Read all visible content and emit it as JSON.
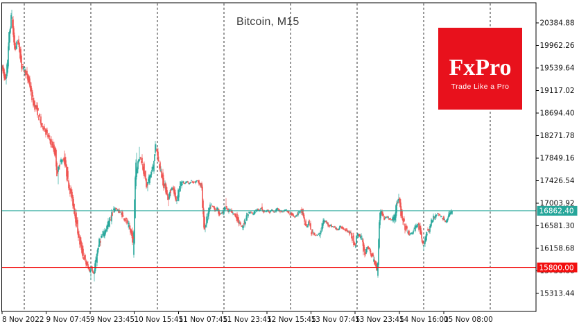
{
  "title": "Bitcoin, M15",
  "logo": {
    "brand": "FxPro",
    "tagline": "Trade Like a Pro",
    "bg_color": "#e8111c",
    "text_color": "#ffffff"
  },
  "chart_data": {
    "type": "candlestick",
    "symbol": "Bitcoin",
    "timeframe": "M15",
    "title": "Bitcoin, M15",
    "up_color": "#26a69a",
    "down_color": "#ef5350",
    "grid": "vertical dashed day separators, no horizontal grid",
    "legend_position": "none",
    "background": "#ffffff",
    "axis_color": "#000000",
    "label_color": "#111111",
    "ylim": [
      15090,
      20760
    ],
    "current_price": 16862.4,
    "current_price_label": "16862.40",
    "current_price_color": "#26a69a",
    "alert_line_price": 15800.0,
    "alert_line_label": "15800.00",
    "alert_line_color": "#f20f0f",
    "y_axis_ticks": [
      "20384.88",
      "19962.26",
      "19539.64",
      "19117.02",
      "18694.40",
      "18271.78",
      "17849.16",
      "17426.54",
      "17003.92",
      "16581.30",
      "16158.68",
      "15736.06",
      "15313.44"
    ],
    "x_axis_ticks": [
      "8 Nov 2022",
      "9 Nov 07:45",
      "9 Nov 23:45",
      "10 Nov 15:45",
      "11 Nov 07:45",
      "11 Nov 23:45",
      "12 Nov 15:45",
      "13 Nov 07:45",
      "13 Nov 23:45",
      "14 Nov 16:00",
      "15 Nov 08:00"
    ],
    "price_path_anchors": [
      [
        3,
        19560
      ],
      [
        6,
        19430
      ],
      [
        9,
        19310
      ],
      [
        11,
        19560
      ],
      [
        13,
        20000
      ],
      [
        15,
        20250
      ],
      [
        17,
        20480
      ],
      [
        19,
        20280
      ],
      [
        21,
        20000
      ],
      [
        23,
        19900
      ],
      [
        25,
        20050
      ],
      [
        27,
        19980
      ],
      [
        29,
        19870
      ],
      [
        31,
        19640
      ],
      [
        34,
        19520
      ],
      [
        37,
        19480
      ],
      [
        40,
        19350
      ],
      [
        43,
        19260
      ],
      [
        46,
        19050
      ],
      [
        49,
        18880
      ],
      [
        52,
        18800
      ],
      [
        55,
        18720
      ],
      [
        58,
        18560
      ],
      [
        61,
        18450
      ],
      [
        64,
        18420
      ],
      [
        67,
        18330
      ],
      [
        70,
        18250
      ],
      [
        73,
        18180
      ],
      [
        76,
        18080
      ],
      [
        79,
        17990
      ],
      [
        81,
        17850
      ],
      [
        83,
        17550
      ],
      [
        85,
        17680
      ],
      [
        88,
        17780
      ],
      [
        91,
        17830
      ],
      [
        94,
        17780
      ],
      [
        97,
        17550
      ],
      [
        100,
        17350
      ],
      [
        103,
        17180
      ],
      [
        106,
        17000
      ],
      [
        109,
        16780
      ],
      [
        112,
        16550
      ],
      [
        115,
        16320
      ],
      [
        118,
        16150
      ],
      [
        121,
        16020
      ],
      [
        124,
        15900
      ],
      [
        127,
        15820
      ],
      [
        130,
        15730
      ],
      [
        132,
        15840
      ],
      [
        134,
        15720
      ],
      [
        136,
        15690
      ],
      [
        138,
        15830
      ],
      [
        140,
        16020
      ],
      [
        143,
        16220
      ],
      [
        146,
        16340
      ],
      [
        149,
        16410
      ],
      [
        152,
        16490
      ],
      [
        155,
        16560
      ],
      [
        158,
        16660
      ],
      [
        161,
        16760
      ],
      [
        164,
        16860
      ],
      [
        167,
        16910
      ],
      [
        170,
        16870
      ],
      [
        173,
        16840
      ],
      [
        176,
        16800
      ],
      [
        179,
        16740
      ],
      [
        182,
        16690
      ],
      [
        185,
        16600
      ],
      [
        188,
        16500
      ],
      [
        191,
        16380
      ],
      [
        193,
        16270
      ],
      [
        196,
        17560
      ],
      [
        199,
        17720
      ],
      [
        202,
        17870
      ],
      [
        205,
        17790
      ],
      [
        208,
        17620
      ],
      [
        210,
        17480
      ],
      [
        212,
        17330
      ],
      [
        215,
        17450
      ],
      [
        218,
        17560
      ],
      [
        221,
        17650
      ],
      [
        224,
        17980
      ],
      [
        226,
        18010
      ],
      [
        228,
        17880
      ],
      [
        231,
        17690
      ],
      [
        234,
        17520
      ],
      [
        237,
        17350
      ],
      [
        240,
        17270
      ],
      [
        243,
        17090
      ],
      [
        246,
        17230
      ],
      [
        249,
        17290
      ],
      [
        252,
        17200
      ],
      [
        255,
        17060
      ],
      [
        258,
        17230
      ],
      [
        261,
        17350
      ],
      [
        264,
        17400
      ],
      [
        267,
        17370
      ],
      [
        270,
        17410
      ],
      [
        273,
        17370
      ],
      [
        276,
        17420
      ],
      [
        279,
        17390
      ],
      [
        282,
        17400
      ],
      [
        285,
        17430
      ],
      [
        288,
        17380
      ],
      [
        291,
        17330
      ],
      [
        293,
        16900
      ],
      [
        295,
        16600
      ],
      [
        297,
        16580
      ],
      [
        299,
        16700
      ],
      [
        302,
        16850
      ],
      [
        305,
        16950
      ],
      [
        308,
        16930
      ],
      [
        311,
        16870
      ],
      [
        314,
        16900
      ],
      [
        317,
        16790
      ],
      [
        320,
        16830
      ],
      [
        323,
        16850
      ],
      [
        326,
        16950
      ],
      [
        329,
        16860
      ],
      [
        332,
        16880
      ],
      [
        335,
        16820
      ],
      [
        338,
        16800
      ],
      [
        341,
        16760
      ],
      [
        344,
        16680
      ],
      [
        347,
        16590
      ],
      [
        350,
        16560
      ],
      [
        353,
        16650
      ],
      [
        356,
        16760
      ],
      [
        359,
        16820
      ],
      [
        362,
        16840
      ],
      [
        365,
        16800
      ],
      [
        368,
        16850
      ],
      [
        371,
        16880
      ],
      [
        374,
        16870
      ],
      [
        377,
        16920
      ],
      [
        380,
        16860
      ],
      [
        383,
        16840
      ],
      [
        386,
        16870
      ],
      [
        389,
        16820
      ],
      [
        392,
        16880
      ],
      [
        395,
        16840
      ],
      [
        398,
        16860
      ],
      [
        401,
        16900
      ],
      [
        404,
        16860
      ],
      [
        407,
        16840
      ],
      [
        410,
        16850
      ],
      [
        413,
        16880
      ],
      [
        416,
        16820
      ],
      [
        419,
        16810
      ],
      [
        422,
        16790
      ],
      [
        425,
        16750
      ],
      [
        428,
        16780
      ],
      [
        431,
        16830
      ],
      [
        434,
        16860
      ],
      [
        436,
        16840
      ],
      [
        438,
        16720
      ],
      [
        440,
        16640
      ],
      [
        443,
        16560
      ],
      [
        446,
        16650
      ],
      [
        449,
        16480
      ],
      [
        452,
        16450
      ],
      [
        455,
        16420
      ],
      [
        458,
        16400
      ],
      [
        461,
        16420
      ],
      [
        464,
        16520
      ],
      [
        467,
        16660
      ],
      [
        470,
        16660
      ],
      [
        473,
        16620
      ],
      [
        476,
        16590
      ],
      [
        479,
        16570
      ],
      [
        482,
        16560
      ],
      [
        485,
        16530
      ],
      [
        488,
        16510
      ],
      [
        491,
        16560
      ],
      [
        494,
        16540
      ],
      [
        497,
        16520
      ],
      [
        500,
        16500
      ],
      [
        503,
        16470
      ],
      [
        506,
        16430
      ],
      [
        509,
        16350
      ],
      [
        511,
        16270
      ],
      [
        513,
        16220
      ],
      [
        515,
        16360
      ],
      [
        517,
        16420
      ],
      [
        519,
        16390
      ],
      [
        522,
        16330
      ],
      [
        525,
        16160
      ],
      [
        527,
        16060
      ],
      [
        530,
        16190
      ],
      [
        533,
        16120
      ],
      [
        536,
        16060
      ],
      [
        539,
        15950
      ],
      [
        541,
        15880
      ],
      [
        543,
        15810
      ],
      [
        545,
        15830
      ],
      [
        546,
        16100
      ],
      [
        548,
        16700
      ],
      [
        550,
        16840
      ],
      [
        552,
        16800
      ],
      [
        555,
        16720
      ],
      [
        558,
        16750
      ],
      [
        561,
        16730
      ],
      [
        564,
        16690
      ],
      [
        567,
        16710
      ],
      [
        570,
        16790
      ],
      [
        573,
        17000
      ],
      [
        575,
        17070
      ],
      [
        577,
        16980
      ],
      [
        579,
        16800
      ],
      [
        581,
        16690
      ],
      [
        583,
        16620
      ],
      [
        585,
        16550
      ],
      [
        588,
        16480
      ],
      [
        591,
        16420
      ],
      [
        594,
        16440
      ],
      [
        597,
        16490
      ],
      [
        600,
        16560
      ],
      [
        603,
        16600
      ],
      [
        605,
        16520
      ],
      [
        607,
        16420
      ],
      [
        609,
        16300
      ],
      [
        611,
        16200
      ],
      [
        613,
        16310
      ],
      [
        616,
        16450
      ],
      [
        619,
        16510
      ],
      [
        622,
        16610
      ],
      [
        625,
        16700
      ],
      [
        628,
        16760
      ],
      [
        631,
        16820
      ],
      [
        634,
        16780
      ],
      [
        637,
        16750
      ],
      [
        640,
        16720
      ],
      [
        643,
        16660
      ],
      [
        646,
        16700
      ],
      [
        649,
        16800
      ],
      [
        652,
        16862.4
      ]
    ],
    "extreme_wicks": [
      [
        9,
        19230
      ],
      [
        17,
        20630
      ],
      [
        84,
        17360
      ],
      [
        93,
        17990
      ],
      [
        131,
        15560
      ],
      [
        136,
        15540
      ],
      [
        197,
        17950
      ],
      [
        201,
        18060
      ],
      [
        213,
        17230
      ],
      [
        225,
        18120
      ],
      [
        243,
        16950
      ],
      [
        255,
        16990
      ],
      [
        296,
        16460
      ],
      [
        326,
        17100
      ],
      [
        350,
        16500
      ],
      [
        378,
        17000
      ],
      [
        435,
        16900
      ],
      [
        449,
        16390
      ],
      [
        462,
        16350
      ],
      [
        513,
        16160
      ],
      [
        527,
        16010
      ],
      [
        543,
        15775
      ],
      [
        551,
        16890
      ],
      [
        575,
        17180
      ],
      [
        611,
        16110
      ],
      [
        651,
        16895
      ]
    ]
  }
}
